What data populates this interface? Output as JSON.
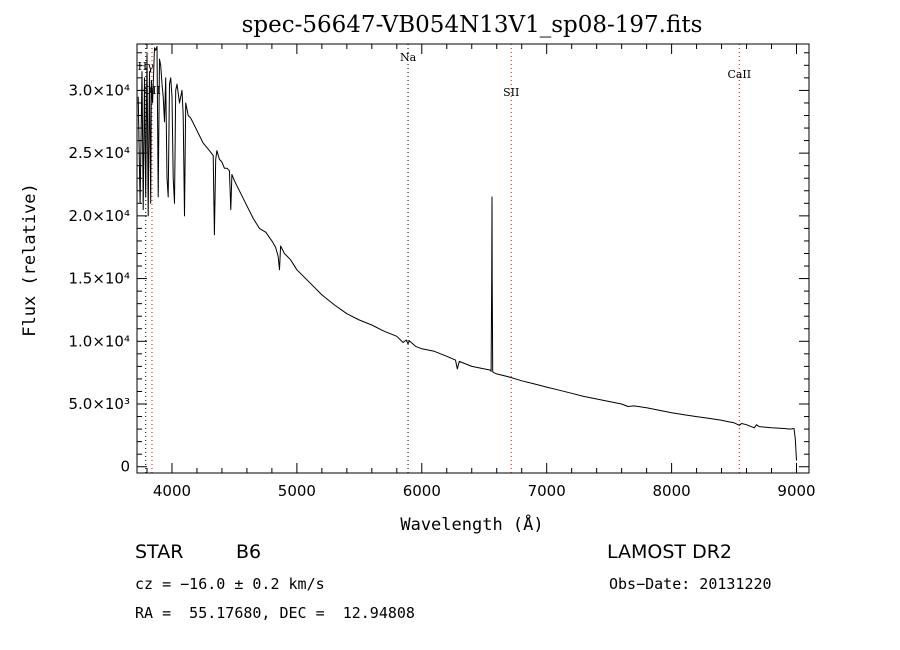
{
  "chart_data": {
    "type": "line",
    "title": "spec-56647-VB054N13V1_sp08-197.fits",
    "xlabel": "Wavelength (Å)",
    "ylabel": "Flux (relative)",
    "xlim": [
      3720,
      9100
    ],
    "ylim": [
      -500,
      33700
    ],
    "x_ticks": [
      4000,
      5000,
      6000,
      7000,
      8000,
      9000
    ],
    "x_tick_labels": [
      "4000",
      "5000",
      "6000",
      "7000",
      "8000",
      "9000"
    ],
    "y_ticks": [
      0,
      5000,
      10000,
      15000,
      20000,
      25000,
      30000
    ],
    "y_tick_labels": [
      "0",
      "5.0×10³",
      "1.0×10⁴",
      "1.5×10⁴",
      "2.0×10⁴",
      "2.5×10⁴",
      "3.0×10⁴"
    ],
    "grid": false,
    "series": [
      {
        "color": "#000000",
        "x": [
          3730,
          3745,
          3760,
          3770,
          3780,
          3790,
          3800,
          3810,
          3820,
          3830,
          3835,
          3845,
          3860,
          3870,
          3880,
          3890,
          3900,
          3910,
          3920,
          3930,
          3940,
          3950,
          3960,
          3970,
          3980,
          3990,
          4000,
          4010,
          4020,
          4030,
          4040,
          4060,
          4080,
          4090,
          4100,
          4110,
          4120,
          4130,
          4150,
          4200,
          4250,
          4300,
          4330,
          4340,
          4350,
          4360,
          4380,
          4400,
          4420,
          4440,
          4460,
          4471,
          4480,
          4500,
          4550,
          4600,
          4650,
          4700,
          4750,
          4800,
          4830,
          4850,
          4861,
          4870,
          4880,
          4900,
          4920,
          4950,
          5000,
          5100,
          5200,
          5300,
          5400,
          5500,
          5600,
          5700,
          5800,
          5850,
          5875,
          5890,
          5900,
          5950,
          6000,
          6100,
          6200,
          6270,
          6284,
          6300,
          6400,
          6500,
          6550,
          6555,
          6560,
          6562,
          6564,
          6568,
          6575,
          6600,
          6700,
          6800,
          6900,
          7000,
          7100,
          7200,
          7300,
          7400,
          7500,
          7600,
          7650,
          7700,
          7800,
          7900,
          8000,
          8100,
          8200,
          8300,
          8400,
          8450,
          8500,
          8542,
          8560,
          8600,
          8662,
          8680,
          8700,
          8800,
          8900,
          8950,
          8980,
          8990,
          9000
        ],
        "y": [
          29500,
          21000,
          31500,
          20500,
          31000,
          21500,
          33000,
          20000,
          31500,
          21000,
          30800,
          29000,
          33400,
          33200,
          33500,
          21500,
          32500,
          32000,
          30500,
          29500,
          27500,
          31000,
          23000,
          21500,
          30500,
          31000,
          29500,
          23000,
          21000,
          30000,
          30500,
          29000,
          30000,
          28000,
          20000,
          29000,
          28500,
          28000,
          27800,
          26800,
          25800,
          25200,
          24800,
          18500,
          24500,
          25200,
          24500,
          24300,
          23800,
          23800,
          23600,
          20500,
          23300,
          22800,
          21800,
          20800,
          19800,
          19000,
          18700,
          18000,
          17500,
          16800,
          15700,
          17600,
          17400,
          17000,
          16800,
          16500,
          15700,
          14700,
          13700,
          12900,
          12200,
          11700,
          11300,
          10800,
          10400,
          9900,
          10100,
          9800,
          10050,
          9600,
          9400,
          9200,
          8800,
          8500,
          7800,
          8400,
          8000,
          7800,
          7700,
          7600,
          15000,
          21500,
          15000,
          7600,
          7500,
          7400,
          7150,
          6850,
          6600,
          6350,
          6100,
          5850,
          5600,
          5400,
          5200,
          5000,
          4800,
          4850,
          4700,
          4500,
          4300,
          4150,
          4000,
          3850,
          3700,
          3600,
          3500,
          3300,
          3450,
          3350,
          3100,
          3350,
          3200,
          3100,
          3050,
          3000,
          3050,
          2200,
          500
        ]
      }
    ],
    "line_markers": [
      {
        "label": "Hγ",
        "x": 3790,
        "color": "#000000"
      },
      {
        "label": "OII",
        "x": 3840,
        "color": "#ff0000"
      },
      {
        "label": "Na",
        "x": 5890,
        "color": "#000000"
      },
      {
        "label": "SII",
        "x": 6716,
        "color": "#ff0000"
      },
      {
        "label": "CaII",
        "x": 8542,
        "color": "#ff0000"
      }
    ]
  },
  "info": {
    "object_class": "STAR",
    "subclass": "B6",
    "survey": "LAMOST DR2",
    "cz": "cz = −16.0 ± 0.2 km/s",
    "obs_date": "Obs−Date: 20131220",
    "coords": "RA =  55.17680, DEC =  12.94808"
  }
}
